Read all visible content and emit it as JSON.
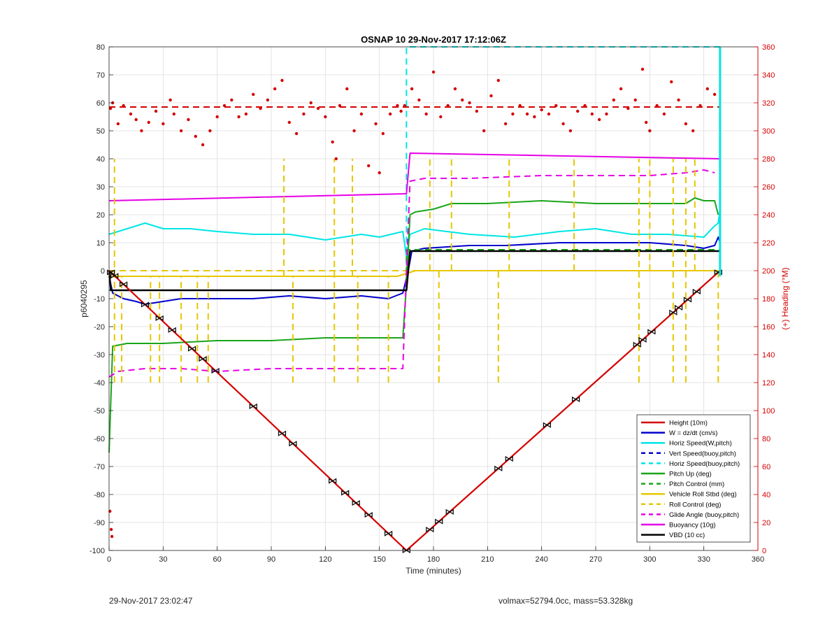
{
  "footer": {
    "left_text": "29-Nov-2017 23:02:47",
    "right_text": "volmax=52794.0cc, mass=53.328kg"
  },
  "chart_data": {
    "type": "line",
    "title": "OSNAP 10 29-Nov-2017 17:12:06Z",
    "xlabel": "Time (minutes)",
    "ylabel": "p6040295",
    "y2label": "(+) Heading (°M)",
    "xlim": [
      0,
      360
    ],
    "ylim": [
      -100,
      80
    ],
    "y2lim": [
      0,
      360
    ],
    "xticks": [
      0,
      30,
      60,
      90,
      120,
      150,
      180,
      210,
      240,
      270,
      300,
      330,
      360
    ],
    "yticks": [
      -100,
      -90,
      -80,
      -70,
      -60,
      -50,
      -40,
      -30,
      -20,
      -10,
      0,
      10,
      20,
      30,
      40,
      50,
      60,
      70,
      80
    ],
    "y2ticks": [
      0,
      20,
      40,
      60,
      80,
      100,
      120,
      140,
      160,
      180,
      200,
      220,
      240,
      260,
      280,
      300,
      320,
      340,
      360
    ],
    "grid": true,
    "legend_position": "bottom-right",
    "colors": {
      "red": "#d40000",
      "blue": "#0000cc",
      "cyan": "#00e5e5",
      "green": "#1aa51a",
      "yellow": "#e5c700",
      "magenta": "#e600e6",
      "black": "#000000"
    },
    "legend": [
      {
        "label": "Height (10m)",
        "color": "#d40000",
        "dash": "solid"
      },
      {
        "label": "W = dz/dt (cm/s)",
        "color": "#0000cc",
        "dash": "solid"
      },
      {
        "label": "Horiz Speed(W,pitch)",
        "color": "#00e5e5",
        "dash": "solid"
      },
      {
        "label": "Vert Speed(buoy,pitch)",
        "color": "#0000cc",
        "dash": "dashed"
      },
      {
        "label": "Horiz Speed(buoy,pitch)",
        "color": "#00e5e5",
        "dash": "dashed"
      },
      {
        "label": "Pitch Up (deg)",
        "color": "#1aa51a",
        "dash": "solid"
      },
      {
        "label": "Pitch Control (mm)",
        "color": "#1aa51a",
        "dash": "dashed"
      },
      {
        "label": "Vehicle Roll Stbd (deg)",
        "color": "#e5c700",
        "dash": "solid"
      },
      {
        "label": "Roll Control (deg)",
        "color": "#e5c700",
        "dash": "dashed"
      },
      {
        "label": "Glide Angle (buoy,pitch)",
        "color": "#e600e6",
        "dash": "dashed"
      },
      {
        "label": "Buoyancy (10g)",
        "color": "#e600e6",
        "dash": "solid"
      },
      {
        "label": "VBD (10 cc)",
        "color": "#000000",
        "dash": "solid"
      }
    ],
    "series": [
      {
        "name": "Height (10m)",
        "color": "#d40000",
        "dash": "solid",
        "width": 2,
        "x": [
          0,
          165,
          339
        ],
        "y": [
          0,
          -100,
          0
        ]
      },
      {
        "name": "W = dz/dt (cm/s)",
        "color": "#0000cc",
        "dash": "solid",
        "width": 2,
        "x": [
          0,
          2,
          8,
          15,
          20,
          30,
          40,
          60,
          80,
          100,
          120,
          140,
          155,
          163,
          166,
          168,
          175,
          200,
          220,
          250,
          270,
          300,
          320,
          330,
          336,
          338,
          339
        ],
        "y": [
          -2,
          -8,
          -10,
          -11,
          -12,
          -11,
          -10,
          -10,
          -10,
          -9,
          -10,
          -9,
          -10,
          -8,
          0,
          7,
          8,
          9,
          9,
          10,
          10,
          10,
          9,
          8,
          9,
          12,
          10
        ]
      },
      {
        "name": "Horiz Speed(W,pitch)",
        "color": "#00e5e5",
        "dash": "solid",
        "width": 2,
        "x": [
          0,
          5,
          15,
          20,
          30,
          45,
          60,
          80,
          100,
          120,
          140,
          150,
          163,
          165,
          167,
          175,
          200,
          225,
          250,
          270,
          290,
          310,
          330,
          336,
          338,
          339
        ],
        "y": [
          13,
          14,
          16,
          17,
          15,
          15,
          14,
          13,
          13,
          11,
          13,
          12,
          14,
          5,
          13,
          15,
          13,
          12,
          14,
          15,
          13,
          13,
          12,
          16,
          17,
          22
        ]
      },
      {
        "name": "Horiz Speed(buoy,pitch)",
        "color": "#00e5e5",
        "dash": "dashed",
        "width": 2,
        "x": [
          0,
          165,
          165,
          339
        ],
        "y": [
          0,
          0,
          80,
          80
        ]
      },
      {
        "name": "Pitch Up (deg)",
        "color": "#1aa51a",
        "dash": "solid",
        "width": 2,
        "x": [
          0,
          2,
          10,
          30,
          60,
          90,
          120,
          150,
          163,
          165,
          167,
          170,
          180,
          190,
          210,
          240,
          270,
          300,
          320,
          325,
          330,
          336,
          338
        ],
        "y": [
          -65,
          -27,
          -26,
          -26,
          -25,
          -25,
          -24,
          -24,
          -24,
          -5,
          20,
          21,
          22,
          24,
          24,
          25,
          24,
          24,
          24,
          26,
          25,
          25,
          20
        ]
      },
      {
        "name": "Pitch Control (mm)",
        "color": "#1aa51a",
        "dash": "dashed",
        "width": 2,
        "x": [
          0,
          165,
          165,
          339
        ],
        "y": [
          -7,
          -7,
          7.5,
          7.5
        ]
      },
      {
        "name": "Vehicle Roll Stbd (deg)",
        "color": "#e5c700",
        "dash": "solid",
        "width": 2,
        "x": [
          0,
          160,
          165,
          170,
          200,
          250,
          300,
          339
        ],
        "y": [
          -2,
          -2,
          -1,
          0,
          0,
          0,
          0,
          0
        ]
      },
      {
        "name": "Roll Control (deg)",
        "color": "#e5c700",
        "dash": "dashed",
        "width": 2,
        "x": [
          0,
          165,
          165,
          339
        ],
        "y": [
          0,
          0,
          0,
          0
        ]
      },
      {
        "name": "Glide Angle (buoy,pitch)",
        "color": "#e600e6",
        "dash": "dashed",
        "width": 2,
        "x": [
          0,
          5,
          20,
          40,
          60,
          90,
          120,
          150,
          163,
          165,
          167,
          175,
          200,
          240,
          280,
          300,
          320,
          330,
          336
        ],
        "y": [
          -38,
          -36,
          -35,
          -35,
          -36,
          -35,
          -35,
          -35,
          -35,
          0,
          32,
          33,
          33,
          34,
          34,
          34,
          35,
          36,
          35
        ]
      },
      {
        "name": "Buoyancy (10g)",
        "color": "#e600e6",
        "dash": "solid",
        "width": 2,
        "x": [
          0,
          165,
          167,
          339
        ],
        "y": [
          25,
          27.5,
          42,
          40
        ]
      },
      {
        "name": "VBD (10 cc)",
        "color": "#000000",
        "dash": "solid",
        "width": 2.5,
        "x": [
          0,
          1,
          165,
          167,
          339
        ],
        "y": [
          0,
          -7,
          -7,
          7,
          7
        ]
      }
    ],
    "roll_spikes": [
      {
        "x": 3,
        "y_min": -40,
        "y_max": 40
      },
      {
        "x": 7,
        "y_min": -40,
        "y_max": -2
      },
      {
        "x": 23,
        "y_min": -40,
        "y_max": -2
      },
      {
        "x": 28,
        "y_min": -40,
        "y_max": -2
      },
      {
        "x": 40,
        "y_min": -40,
        "y_max": -2
      },
      {
        "x": 49,
        "y_min": -40,
        "y_max": -2
      },
      {
        "x": 55,
        "y_min": -40,
        "y_max": -2
      },
      {
        "x": 97,
        "y_min": -2,
        "y_max": 40
      },
      {
        "x": 102,
        "y_min": -40,
        "y_max": -2
      },
      {
        "x": 125,
        "y_min": -40,
        "y_max": 40
      },
      {
        "x": 135,
        "y_min": -2,
        "y_max": 40
      },
      {
        "x": 138,
        "y_min": -40,
        "y_max": -2
      },
      {
        "x": 155,
        "y_min": -40,
        "y_max": -2
      },
      {
        "x": 178,
        "y_min": 0,
        "y_max": 40
      },
      {
        "x": 183,
        "y_min": -40,
        "y_max": 0
      },
      {
        "x": 190,
        "y_min": 0,
        "y_max": 40
      },
      {
        "x": 216,
        "y_min": -40,
        "y_max": 0
      },
      {
        "x": 222,
        "y_min": 0,
        "y_max": 40
      },
      {
        "x": 258,
        "y_min": 0,
        "y_max": 40
      },
      {
        "x": 294,
        "y_min": -40,
        "y_max": 40
      },
      {
        "x": 300,
        "y_min": 0,
        "y_max": 40
      },
      {
        "x": 313,
        "y_min": -40,
        "y_max": 40
      },
      {
        "x": 320,
        "y_min": -40,
        "y_max": 40
      },
      {
        "x": 325,
        "y_min": 0,
        "y_max": 40
      },
      {
        "x": 338,
        "y_min": -40,
        "y_max": 0
      }
    ],
    "height_markers_x": [
      1,
      3,
      8,
      20,
      28,
      35,
      46,
      52,
      59,
      80,
      96,
      102,
      124,
      131,
      137,
      144,
      155,
      165,
      178,
      183,
      189,
      216,
      222,
      243,
      259,
      293,
      296,
      301,
      313,
      316,
      321,
      326,
      338
    ],
    "heading_series": {
      "name": "(+) Heading (°M)",
      "color": "#d40000",
      "axis": "right",
      "mean": 317,
      "x": [
        2,
        5,
        8,
        12,
        15,
        18,
        22,
        26,
        30,
        34,
        36,
        40,
        44,
        48,
        52,
        56,
        60,
        64,
        68,
        72,
        76,
        80,
        84,
        88,
        92,
        96,
        100,
        104,
        108,
        112,
        116,
        120,
        124,
        126,
        128,
        132,
        136,
        140,
        144,
        148,
        150,
        152,
        156,
        160,
        162,
        164,
        168,
        172,
        176,
        180,
        184,
        188,
        192,
        196,
        200,
        204,
        208,
        212,
        216,
        220,
        224,
        228,
        232,
        236,
        240,
        244,
        248,
        252,
        256,
        260,
        264,
        268,
        272,
        276,
        280,
        284,
        288,
        292,
        296,
        298,
        300,
        304,
        308,
        312,
        316,
        320,
        324,
        328,
        332,
        336
      ],
      "y": [
        320,
        305,
        318,
        312,
        308,
        300,
        306,
        314,
        305,
        322,
        312,
        300,
        308,
        296,
        290,
        300,
        310,
        318,
        322,
        310,
        312,
        326,
        316,
        322,
        330,
        336,
        306,
        298,
        312,
        320,
        316,
        310,
        292,
        280,
        318,
        330,
        300,
        312,
        275,
        305,
        270,
        298,
        312,
        318,
        314,
        318,
        330,
        322,
        312,
        342,
        310,
        318,
        330,
        322,
        320,
        314,
        300,
        325,
        336,
        305,
        312,
        318,
        312,
        310,
        315,
        312,
        318,
        305,
        300,
        314,
        318,
        312,
        308,
        312,
        322,
        330,
        316,
        322,
        344,
        306,
        300,
        318,
        312,
        335,
        322,
        305,
        300,
        318,
        330,
        326
      ]
    },
    "heading_outliers": [
      {
        "x": 0.8,
        "y": 316
      },
      {
        "x": 1.2,
        "y": 15
      },
      {
        "x": 1.6,
        "y": 10
      },
      {
        "x": 0.5,
        "y": 28
      }
    ]
  }
}
